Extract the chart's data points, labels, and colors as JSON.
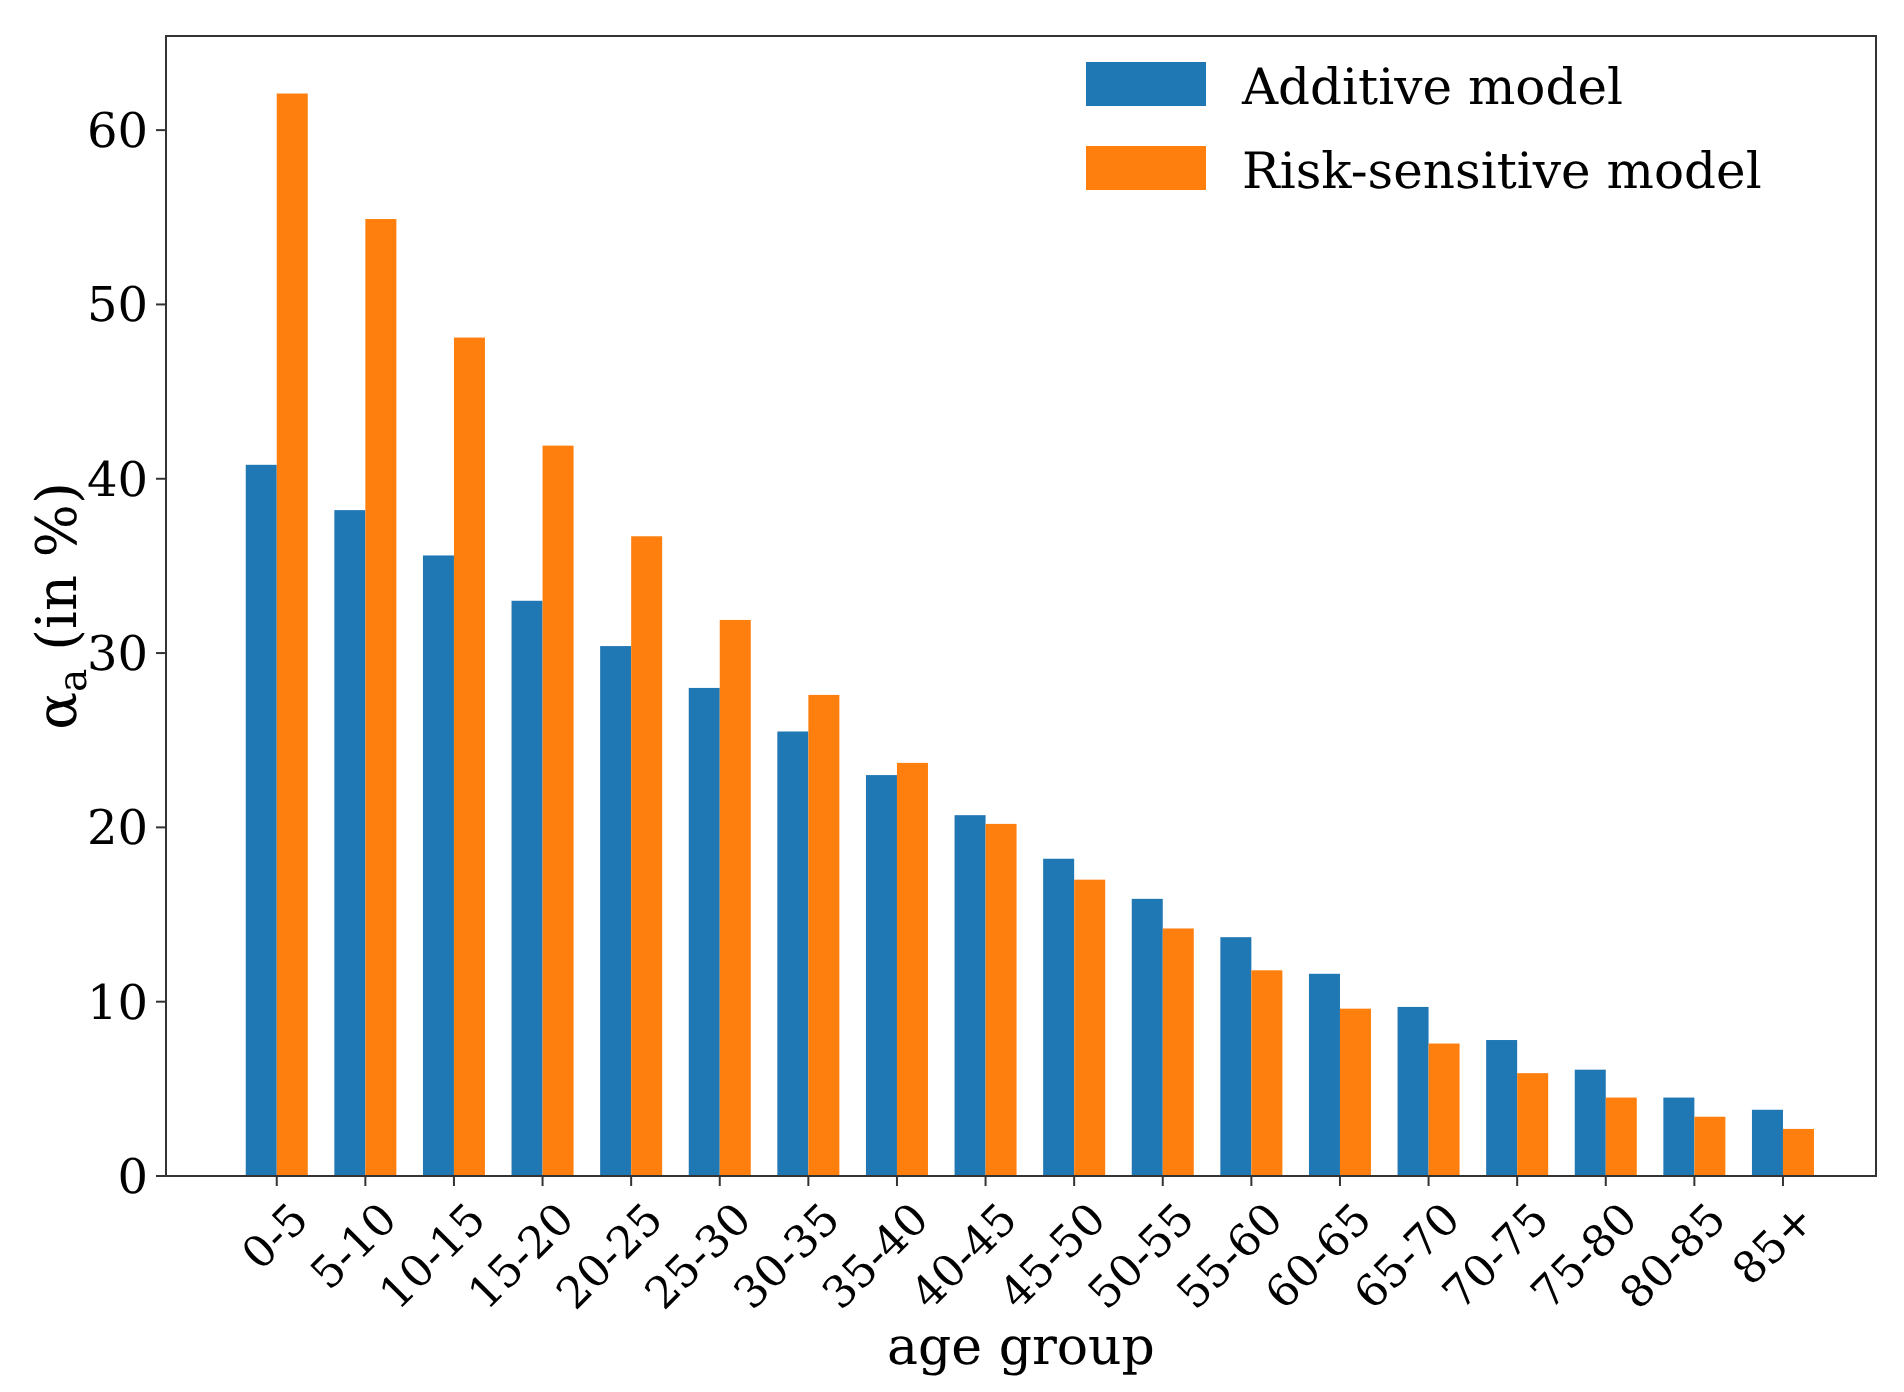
{
  "chart_data": {
    "type": "bar",
    "xlabel": "age group",
    "ylabel": "α$_{a}$ (in %)",
    "categories": [
      "0-5",
      "5-10",
      "10-15",
      "15-20",
      "20-25",
      "25-30",
      "30-35",
      "35-40",
      "40-45",
      "45-50",
      "50-55",
      "55-60",
      "60-65",
      "65-70",
      "70-75",
      "75-80",
      "80-85",
      "85+"
    ],
    "series": [
      {
        "name": "Additive model",
        "color": "#1f77b4",
        "values": [
          40.8,
          38.2,
          35.6,
          33.0,
          30.4,
          28.0,
          25.5,
          23.0,
          20.7,
          18.2,
          15.9,
          13.7,
          11.6,
          9.7,
          7.8,
          6.1,
          4.5,
          3.8
        ]
      },
      {
        "name": "Risk-sensitive model",
        "color": "#ff7f0e",
        "values": [
          62.1,
          54.9,
          48.1,
          41.9,
          36.7,
          31.9,
          27.6,
          23.7,
          20.2,
          17.0,
          14.2,
          11.8,
          9.6,
          7.6,
          5.9,
          4.5,
          3.4,
          2.7
        ]
      }
    ],
    "ylim": [
      0,
      65.4
    ],
    "yticks": [
      0,
      10,
      20,
      30,
      40,
      50,
      60
    ],
    "grid": false,
    "legend": "top right"
  }
}
